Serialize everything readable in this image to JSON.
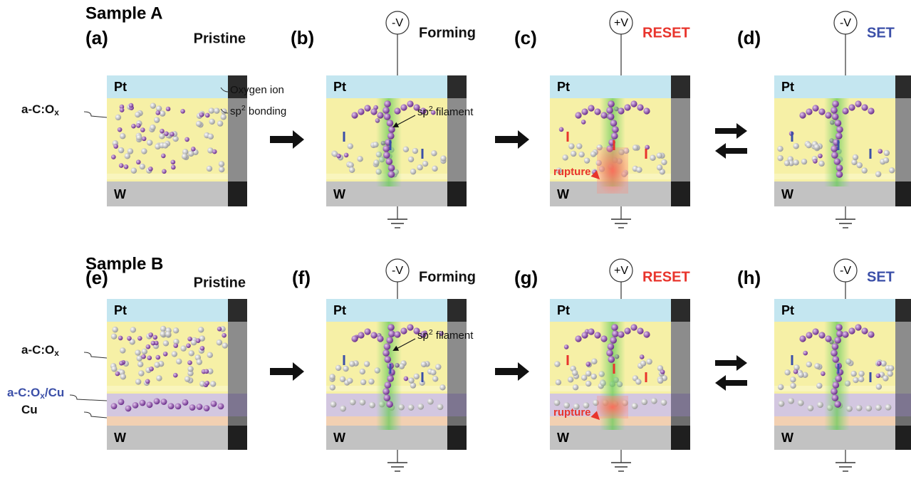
{
  "rows": [
    {
      "title": "Sample A",
      "layer_labels": [
        {
          "text": "a-C:O",
          "sub": "x"
        }
      ],
      "panels": [
        {
          "label": "(a)",
          "state": "Pristine",
          "state_color": "#111111",
          "top": "Pt",
          "bottom": "W",
          "annotations": [
            {
              "text": "Oxygen ion"
            },
            {
              "text": "sp",
              "sup": "2",
              "post": " bonding"
            }
          ]
        },
        {
          "label": "(b)",
          "state": "Forming",
          "state_color": "#111111",
          "voltage": "-V",
          "top": "Pt",
          "bottom": "W",
          "annotations": [
            {
              "text": "sp",
              "sup": "2",
              "post": " filament"
            }
          ]
        },
        {
          "label": "(c)",
          "state": "RESET",
          "state_color": "#e8342c",
          "voltage": "+V",
          "top": "Pt",
          "bottom": "W",
          "annotations": [
            {
              "text": "rupture"
            }
          ]
        },
        {
          "label": "(d)",
          "state": "SET",
          "state_color": "#3b4fa8",
          "voltage": "-V",
          "top": "Pt",
          "bottom": "W"
        }
      ]
    },
    {
      "title": "Sample B",
      "layer_labels": [
        {
          "text": "a-C:O",
          "sub": "x"
        },
        {
          "text": "a-C:O",
          "sub": "x",
          "post": "/Cu"
        },
        {
          "text": "Cu"
        }
      ],
      "panels": [
        {
          "label": "(e)",
          "state": "Pristine",
          "state_color": "#111111",
          "top": "Pt",
          "bottom": "W"
        },
        {
          "label": "(f)",
          "state": "Forming",
          "state_color": "#111111",
          "voltage": "-V",
          "top": "Pt",
          "bottom": "W",
          "annotations": [
            {
              "text": "sp",
              "sup": "2",
              "post": " filament"
            }
          ]
        },
        {
          "label": "(g)",
          "state": "RESET",
          "state_color": "#e8342c",
          "voltage": "+V",
          "top": "Pt",
          "bottom": "W",
          "annotations": [
            {
              "text": "rupture"
            }
          ]
        },
        {
          "label": "(h)",
          "state": "SET",
          "state_color": "#3b4fa8",
          "voltage": "-V",
          "top": "Pt",
          "bottom": "W"
        }
      ]
    }
  ]
}
